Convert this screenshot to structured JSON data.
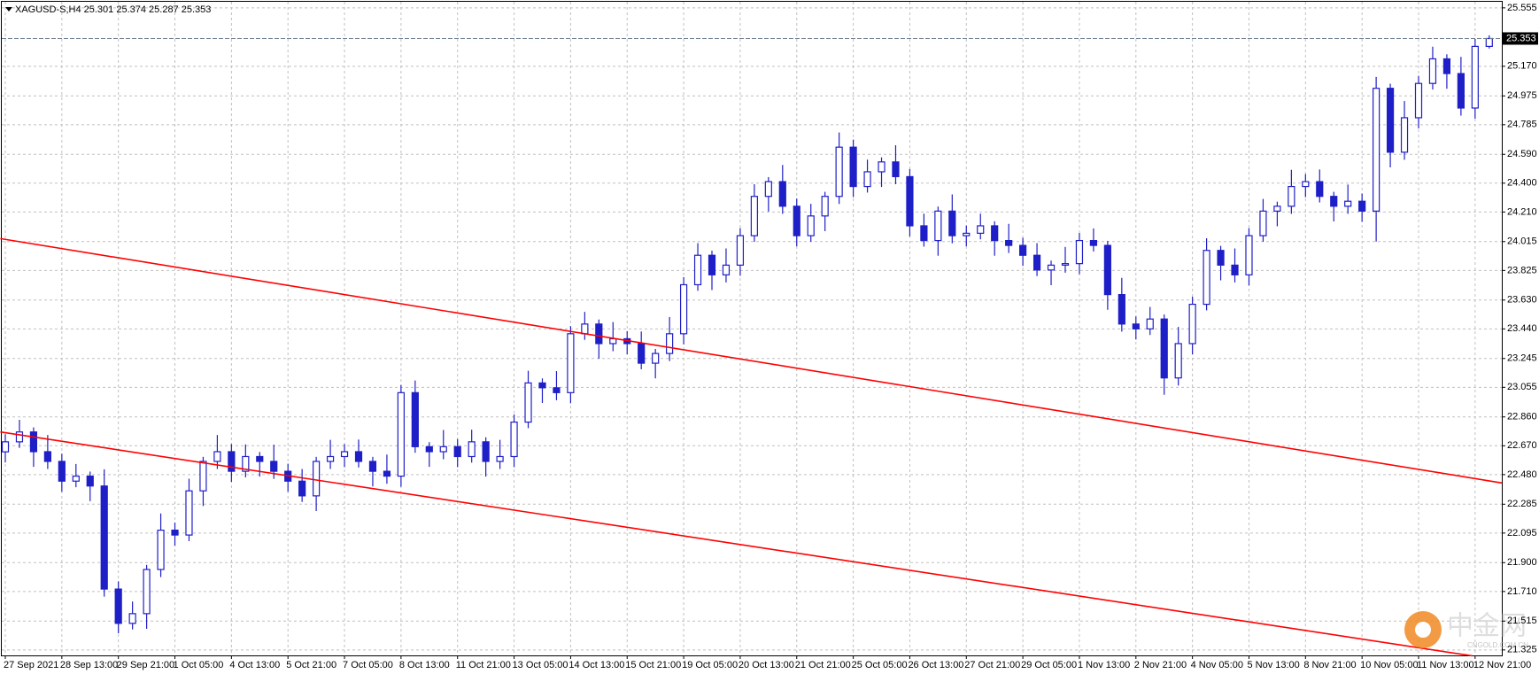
{
  "chart_data": {
    "type": "candlestick",
    "title": "XAGUSD-S,H4  25.301 25.374 25.287 25.353",
    "categories": [
      "27 Sep 2021",
      null,
      null,
      null,
      "28 Sep 13:00",
      null,
      null,
      null,
      "29 Sep 21:00",
      null,
      null,
      null,
      "1 Oct 05:00",
      null,
      null,
      null,
      "4 Oct 13:00",
      null,
      null,
      null,
      "5 Oct 21:00",
      null,
      null,
      null,
      "7 Oct 05:00",
      null,
      null,
      null,
      "8 Oct 13:00",
      null,
      null,
      null,
      "11 Oct 21:00",
      null,
      null,
      null,
      "13 Oct 05:00",
      null,
      null,
      null,
      "14 Oct 13:00",
      null,
      null,
      null,
      "15 Oct 21:00",
      null,
      null,
      null,
      "19 Oct 05:00",
      null,
      null,
      null,
      "20 Oct 13:00",
      null,
      null,
      null,
      "21 Oct 21:00",
      null,
      null,
      null,
      "25 Oct 05:00",
      null,
      null,
      null,
      "26 Oct 13:00",
      null,
      null,
      null,
      "27 Oct 21:00",
      null,
      null,
      null,
      "29 Oct 05:00",
      null,
      null,
      null,
      "1 Nov 13:00",
      null,
      null,
      null,
      "2 Nov 21:00",
      null,
      null,
      null,
      "4 Nov 05:00",
      null,
      null,
      null,
      "5 Nov 13:00",
      null,
      null,
      null,
      "8 Nov 21:00",
      null,
      null,
      null,
      "10 Nov 05:00",
      null,
      null,
      null,
      "11 Nov 13:00",
      null,
      null,
      null,
      "12 Nov 21:00",
      null
    ],
    "open": [
      22.63,
      22.696,
      22.761,
      22.631,
      22.567,
      22.437,
      22.47,
      22.405,
      21.726,
      21.5,
      21.564,
      21.855,
      22.114,
      22.082,
      22.373,
      22.567,
      22.631,
      22.502,
      22.599,
      22.567,
      22.502,
      22.437,
      22.34,
      22.567,
      22.599,
      22.631,
      22.567,
      22.502,
      22.47,
      23.02,
      22.664,
      22.631,
      22.664,
      22.599,
      22.696,
      22.567,
      22.599,
      22.826,
      23.084,
      23.052,
      23.02,
      23.408,
      23.472,
      23.343,
      23.375,
      23.343,
      23.214,
      23.278,
      23.408,
      23.731,
      23.925,
      23.796,
      23.86,
      24.054,
      24.313,
      24.41,
      24.248,
      24.054,
      24.184,
      24.313,
      24.637,
      24.378,
      24.475,
      24.54,
      24.443,
      24.119,
      24.022,
      24.216,
      24.054,
      24.07,
      24.119,
      24.022,
      23.99,
      23.925,
      23.828,
      23.86,
      23.87,
      24.022,
      23.99,
      23.666,
      23.472,
      23.44,
      23.505,
      23.117,
      23.343,
      23.602,
      23.957,
      23.86,
      23.796,
      24.054,
      24.216,
      24.248,
      24.378,
      24.41,
      24.313,
      24.248,
      24.281,
      24.216,
      25.025,
      24.604,
      24.831,
      25.057,
      25.219,
      25.122,
      24.895,
      25.301
    ],
    "high": [
      22.746,
      22.841,
      22.791,
      22.741,
      22.617,
      22.55,
      22.5,
      22.515,
      21.776,
      21.644,
      21.885,
      22.224,
      22.164,
      22.453,
      22.597,
      22.741,
      22.681,
      22.679,
      22.629,
      22.677,
      22.552,
      22.517,
      22.597,
      22.709,
      22.681,
      22.711,
      22.597,
      22.612,
      23.07,
      23.1,
      22.694,
      22.774,
      22.714,
      22.776,
      22.726,
      22.709,
      22.876,
      23.164,
      23.114,
      23.162,
      23.458,
      23.552,
      23.502,
      23.485,
      23.425,
      23.423,
      23.308,
      23.518,
      23.781,
      24.005,
      23.955,
      23.97,
      24.104,
      24.393,
      24.44,
      24.52,
      24.298,
      24.264,
      24.343,
      24.734,
      24.687,
      24.555,
      24.57,
      24.65,
      24.493,
      24.199,
      24.246,
      24.326,
      24.12,
      24.199,
      24.149,
      24.132,
      24.04,
      24.005,
      23.89,
      23.98,
      24.072,
      24.102,
      24.02,
      23.776,
      23.522,
      23.585,
      23.535,
      23.453,
      23.652,
      24.037,
      23.987,
      23.97,
      24.104,
      24.296,
      24.278,
      24.488,
      24.46,
      24.49,
      24.343,
      24.391,
      24.331,
      25.1,
      25.055,
      24.941,
      25.107,
      25.299,
      25.249,
      25.232,
      25.351,
      25.374
    ],
    "low": [
      22.56,
      22.656,
      22.531,
      22.517,
      22.367,
      22.397,
      22.305,
      21.676,
      21.435,
      21.46,
      21.464,
      21.805,
      22.012,
      22.042,
      22.273,
      22.517,
      22.432,
      22.462,
      22.467,
      22.452,
      22.367,
      22.3,
      22.24,
      22.517,
      22.529,
      22.527,
      22.402,
      22.42,
      22.4,
      22.624,
      22.531,
      22.581,
      22.529,
      22.559,
      22.467,
      22.517,
      22.529,
      22.786,
      22.952,
      22.97,
      22.95,
      23.368,
      23.243,
      23.293,
      23.273,
      23.174,
      23.114,
      23.228,
      23.338,
      23.691,
      23.696,
      23.746,
      23.79,
      24.014,
      24.213,
      24.198,
      23.984,
      24.014,
      24.084,
      24.263,
      24.308,
      24.338,
      24.375,
      24.393,
      24.049,
      23.982,
      23.922,
      24.004,
      23.984,
      24.03,
      23.922,
      23.94,
      23.855,
      23.788,
      23.728,
      23.81,
      23.8,
      23.95,
      23.566,
      23.422,
      23.37,
      23.4,
      23.006,
      23.067,
      23.273,
      23.562,
      23.76,
      23.746,
      23.726,
      24.014,
      24.116,
      24.198,
      24.308,
      24.273,
      24.148,
      24.198,
      24.146,
      24.015,
      24.504,
      24.554,
      24.761,
      25.017,
      25.022,
      24.845,
      24.825,
      25.287
    ],
    "close": [
      22.696,
      22.761,
      22.631,
      22.567,
      22.437,
      22.47,
      22.405,
      21.726,
      21.5,
      21.564,
      21.855,
      22.114,
      22.082,
      22.373,
      22.567,
      22.631,
      22.502,
      22.599,
      22.567,
      22.502,
      22.437,
      22.34,
      22.567,
      22.599,
      22.631,
      22.567,
      22.502,
      22.47,
      23.02,
      22.664,
      22.631,
      22.664,
      22.599,
      22.696,
      22.567,
      22.599,
      22.826,
      23.084,
      23.052,
      23.02,
      23.408,
      23.472,
      23.343,
      23.375,
      23.343,
      23.214,
      23.278,
      23.408,
      23.731,
      23.925,
      23.796,
      23.86,
      24.054,
      24.313,
      24.41,
      24.248,
      24.054,
      24.184,
      24.313,
      24.637,
      24.378,
      24.475,
      24.54,
      24.443,
      24.119,
      24.022,
      24.216,
      24.054,
      24.07,
      24.119,
      24.022,
      23.99,
      23.925,
      23.828,
      23.86,
      23.87,
      24.022,
      23.99,
      23.666,
      23.472,
      23.44,
      23.505,
      23.117,
      23.343,
      23.602,
      23.957,
      23.86,
      23.796,
      24.054,
      24.216,
      24.248,
      24.378,
      24.41,
      24.313,
      24.248,
      24.281,
      24.216,
      25.025,
      24.604,
      24.831,
      25.057,
      25.219,
      25.122,
      24.895,
      25.301,
      25.353
    ],
    "bull_color": "#ffffff",
    "bear_color": "#1f1fc8",
    "wick_color": "#1f1fc8",
    "ylim": [
      21.289,
      25.595
    ],
    "yticks": [
      25.555,
      {
        "value": 25.17,
        "label": "25.170"
      },
      24.975,
      24.785,
      {
        "value": 24.59,
        "label": "24.590"
      },
      {
        "value": 24.4,
        "label": "24.400"
      },
      {
        "value": 24.21,
        "label": "24.210"
      },
      24.015,
      23.825,
      {
        "value": 23.63,
        "label": "23.630"
      },
      {
        "value": 23.44,
        "label": "23.440"
      },
      23.245,
      23.055,
      {
        "value": 22.86,
        "label": "22.860"
      },
      {
        "value": 22.67,
        "label": "22.670"
      },
      {
        "value": 22.48,
        "label": "22.480"
      },
      22.285,
      22.095,
      {
        "value": 21.9,
        "label": "21.900"
      },
      {
        "value": 21.71,
        "label": "21.710"
      },
      21.515,
      21.325
    ],
    "grid": true,
    "trend_lines": [
      {
        "color": "#ff0000",
        "x": [
          -0.35,
          105.9
        ],
        "y": [
          24.035,
          22.425
        ]
      },
      {
        "color": "#ff0000",
        "x": [
          -0.35,
          103.8
        ],
        "y": [
          22.761,
          21.286
        ]
      }
    ],
    "watermark": {
      "text": "中金网",
      "sub": "CNGOLD.COM.CN"
    }
  }
}
